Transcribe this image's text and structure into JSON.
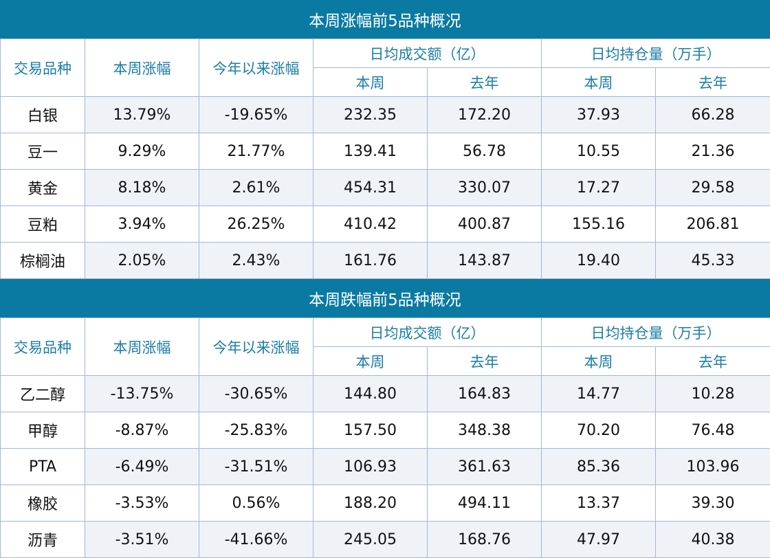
{
  "colors": {
    "header_bg": "#0a7aa3",
    "header_text": "#1a7ea6",
    "border": "#a3b4dc",
    "alt_row": "#eff3f8"
  },
  "headers": {
    "variety": "交易品种",
    "week_change": "本周涨幅",
    "ytd_change": "今年以来涨幅",
    "avg_turnover": "日均成交额（亿）",
    "avg_open_interest": "日均持仓量（万手）",
    "this_week": "本周",
    "last_year": "去年"
  },
  "sections": [
    {
      "title": "本周涨幅前5品种概况",
      "rows": [
        [
          "白银",
          "13.79%",
          "-19.65%",
          "232.35",
          "172.20",
          "37.93",
          "66.28"
        ],
        [
          "豆一",
          "9.29%",
          "21.77%",
          "139.41",
          "56.78",
          "10.55",
          "21.36"
        ],
        [
          "黄金",
          "8.18%",
          "2.61%",
          "454.31",
          "330.07",
          "17.27",
          "29.58"
        ],
        [
          "豆粕",
          "3.94%",
          "26.25%",
          "410.42",
          "400.87",
          "155.16",
          "206.81"
        ],
        [
          "棕榈油",
          "2.05%",
          "2.43%",
          "161.76",
          "143.87",
          "19.40",
          "45.33"
        ]
      ]
    },
    {
      "title": "本周跌幅前5品种概况",
      "rows": [
        [
          "乙二醇",
          "-13.75%",
          "-30.65%",
          "144.80",
          "164.83",
          "14.77",
          "10.28"
        ],
        [
          "甲醇",
          "-8.87%",
          "-25.83%",
          "157.50",
          "348.38",
          "70.20",
          "76.48"
        ],
        [
          "PTA",
          "-6.49%",
          "-31.51%",
          "106.93",
          "361.63",
          "85.36",
          "103.96"
        ],
        [
          "橡胶",
          "-3.53%",
          "0.56%",
          "188.20",
          "494.11",
          "13.37",
          "39.30"
        ],
        [
          "沥青",
          "-3.51%",
          "-41.66%",
          "245.05",
          "168.76",
          "47.97",
          "40.38"
        ]
      ]
    }
  ]
}
